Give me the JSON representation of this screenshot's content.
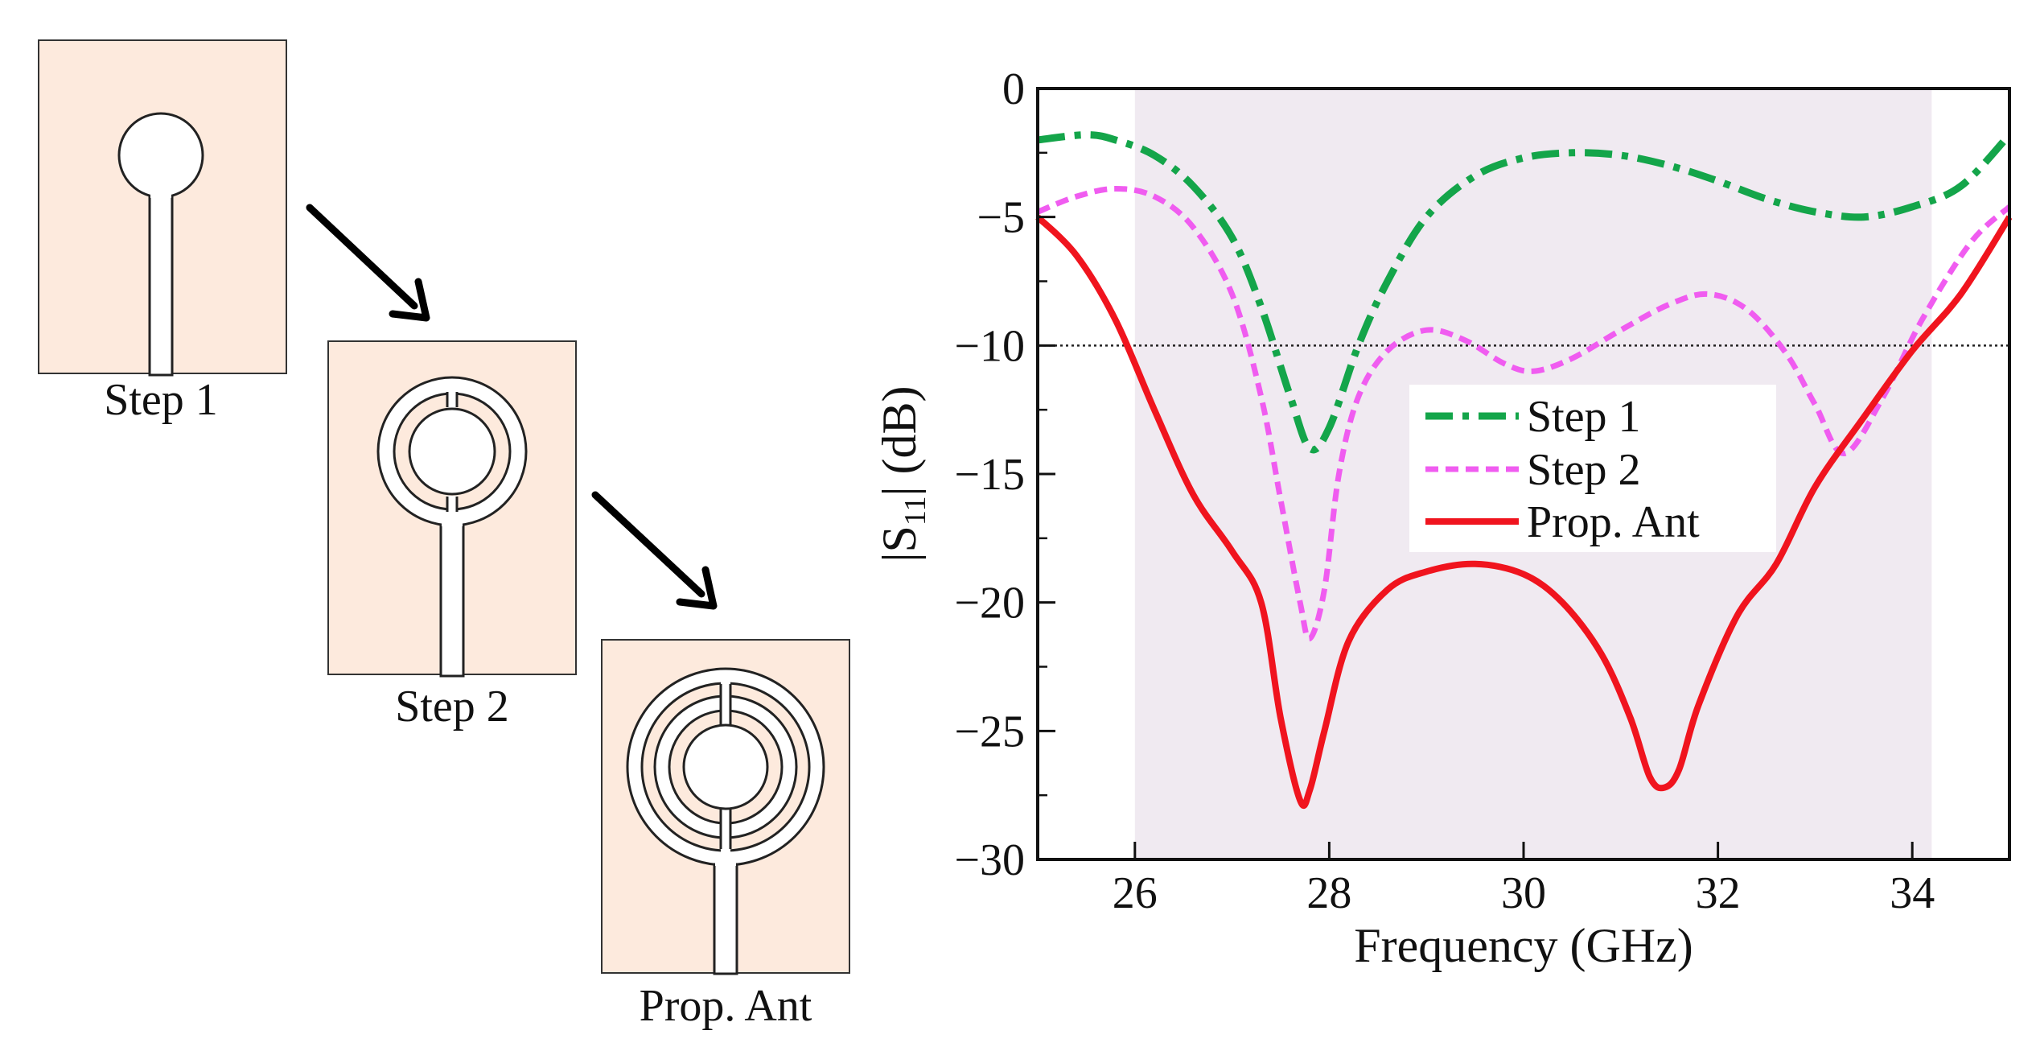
{
  "steps": [
    {
      "label": "Step 1",
      "rings": 0
    },
    {
      "label": "Step 2",
      "rings": 1
    },
    {
      "label": "Prop. Ant",
      "rings": 2
    }
  ],
  "colors": {
    "substrate": "#FDEADD",
    "band": "#F0EAF1",
    "step1": "#14A54A",
    "step2": "#F05CF0",
    "prop": "#F0141E",
    "ref": "#222222"
  },
  "chart_data": {
    "type": "line",
    "xlabel": "Frequency (GHz)",
    "ylabel_main": "|S",
    "ylabel_sub": "11",
    "ylabel_end": "| (dB)",
    "xlim": [
      25,
      35
    ],
    "ylim": [
      -30,
      0
    ],
    "x_ticks": [
      26,
      28,
      30,
      32,
      34
    ],
    "x_tick_labels": [
      "26",
      "28",
      "30",
      "32",
      "34"
    ],
    "y_ticks": [
      0,
      -5,
      -10,
      -15,
      -20,
      -25,
      -30
    ],
    "y_tick_labels": [
      "0",
      "−5",
      "−10",
      "−15",
      "−20",
      "−25",
      "−30"
    ],
    "shaded_band": [
      26,
      34.2
    ],
    "reference_line": -10,
    "legend_position": "center-right",
    "series": [
      {
        "name": "Step 1",
        "style": "dashdot",
        "x": [
          25,
          25.5,
          25.8,
          26.2,
          26.6,
          27.0,
          27.3,
          27.6,
          27.8,
          28.0,
          28.3,
          28.6,
          29.0,
          29.5,
          30.0,
          30.5,
          31.0,
          31.5,
          32.0,
          32.5,
          33.0,
          33.5,
          34.0,
          34.5,
          35.0
        ],
        "y": [
          -2.0,
          -1.8,
          -2.0,
          -2.6,
          -3.8,
          -5.8,
          -8.5,
          -12.0,
          -14.0,
          -13.2,
          -10.0,
          -7.5,
          -5.0,
          -3.4,
          -2.7,
          -2.5,
          -2.6,
          -3.0,
          -3.6,
          -4.3,
          -4.8,
          -5.0,
          -4.6,
          -3.8,
          -1.8
        ]
      },
      {
        "name": "Step 2",
        "style": "dashed",
        "x": [
          25,
          25.4,
          25.8,
          26.2,
          26.6,
          27.0,
          27.3,
          27.5,
          27.7,
          27.8,
          27.95,
          28.1,
          28.3,
          28.6,
          29.0,
          29.4,
          29.8,
          30.1,
          30.5,
          31.0,
          31.5,
          31.9,
          32.3,
          32.7,
          33.0,
          33.3,
          33.7,
          34.1,
          34.6,
          35.0
        ],
        "y": [
          -4.8,
          -4.2,
          -3.9,
          -4.2,
          -5.4,
          -8.0,
          -12.0,
          -16.0,
          -20.0,
          -21.4,
          -19.5,
          -15.0,
          -12.0,
          -10.2,
          -9.4,
          -9.8,
          -10.7,
          -11.0,
          -10.5,
          -9.4,
          -8.4,
          -8.0,
          -8.6,
          -10.3,
          -12.3,
          -14.2,
          -12.0,
          -9.0,
          -6.0,
          -4.6
        ]
      },
      {
        "name": "Prop. Ant",
        "style": "solid",
        "x": [
          25,
          25.4,
          25.8,
          26.2,
          26.6,
          27.0,
          27.3,
          27.5,
          27.7,
          27.8,
          27.95,
          28.2,
          28.6,
          29.0,
          29.5,
          30.0,
          30.4,
          30.8,
          31.1,
          31.3,
          31.45,
          31.6,
          31.8,
          32.2,
          32.6,
          33.0,
          33.5,
          34.0,
          34.5,
          35.0
        ],
        "y": [
          -5.0,
          -6.5,
          -9.0,
          -12.5,
          -15.8,
          -18.0,
          -20.0,
          -24.5,
          -27.7,
          -27.3,
          -25.0,
          -21.5,
          -19.5,
          -18.8,
          -18.5,
          -18.9,
          -20.0,
          -22.0,
          -24.5,
          -26.8,
          -27.2,
          -26.5,
          -24.0,
          -20.5,
          -18.5,
          -15.5,
          -12.8,
          -10.2,
          -8.0,
          -5.0
        ]
      }
    ]
  }
}
